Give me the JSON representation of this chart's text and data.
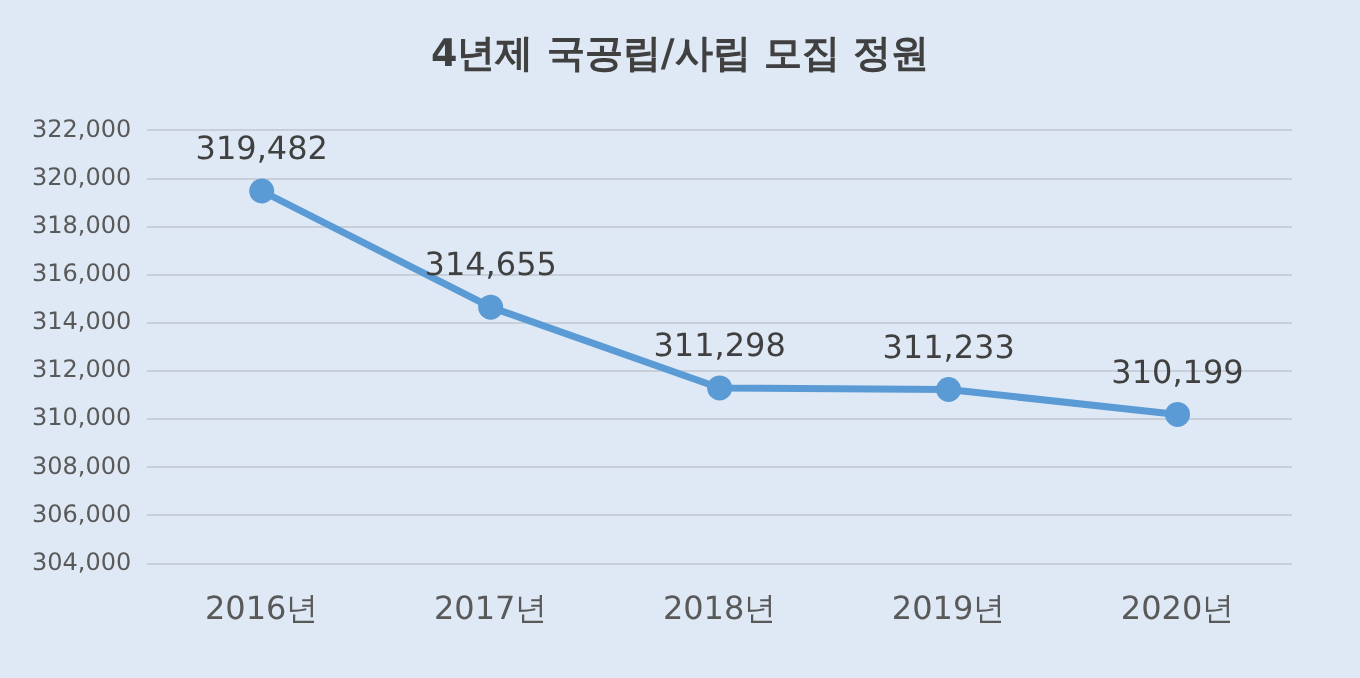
{
  "chart_data": {
    "type": "line",
    "title": "4년제 국공립/사립 모집 정원",
    "categories": [
      "2016년",
      "2017년",
      "2018년",
      "2019년",
      "2020년"
    ],
    "series": [
      {
        "color": "#5b9bd5",
        "values": [
          319482,
          314655,
          311298,
          311233,
          310199
        ]
      }
    ],
    "ylim": [
      304000,
      322000
    ],
    "yticks": [
      {
        "value": 304000,
        "label": "304,000"
      },
      {
        "value": 306000,
        "label": "306,000"
      },
      {
        "value": 308000,
        "label": "308,000"
      },
      {
        "value": 310000,
        "label": "310,000"
      },
      {
        "value": 312000,
        "label": "312,000"
      },
      {
        "value": 314000,
        "label": "314,000"
      },
      {
        "value": 316000,
        "label": "316,000"
      },
      {
        "value": 318000,
        "label": "318,000"
      },
      {
        "value": 320000,
        "label": "320,000"
      },
      {
        "value": 322000,
        "label": "322,000"
      }
    ],
    "grid": "y",
    "legend": false,
    "marker": "circle",
    "line_style": "solid",
    "value_labels": [
      "319,482",
      "314,655",
      "311,298",
      "311,233",
      "310,199"
    ]
  }
}
